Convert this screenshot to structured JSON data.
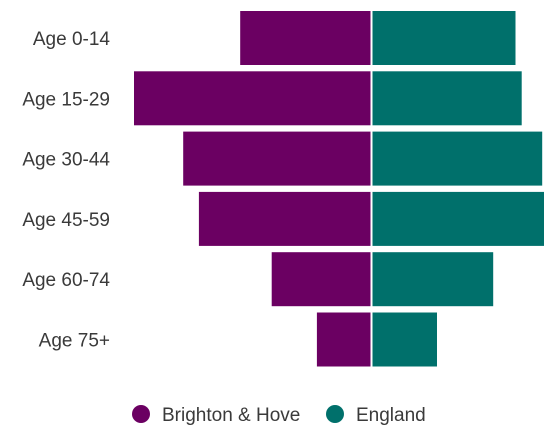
{
  "chart_data": {
    "type": "bar",
    "orientation": "horizontal-diverging",
    "title": "",
    "xlabel": "",
    "ylabel": "",
    "categories": [
      "Age 0-14",
      "Age 15-29",
      "Age 30-44",
      "Age 45-59",
      "Age 60-74",
      "Age 75+"
    ],
    "series": [
      {
        "name": "Brighton & Hove",
        "color": "#6b0062",
        "values": [
          13.3,
          24.1,
          19.1,
          17.5,
          10.1,
          5.5
        ]
      },
      {
        "name": "England",
        "color": "#00706b",
        "values": [
          16.2,
          16.9,
          19.2,
          19.4,
          13.7,
          7.4
        ]
      }
    ],
    "xlim": [
      -24.1,
      19.4
    ],
    "grid": false,
    "legend_position": "bottom"
  }
}
